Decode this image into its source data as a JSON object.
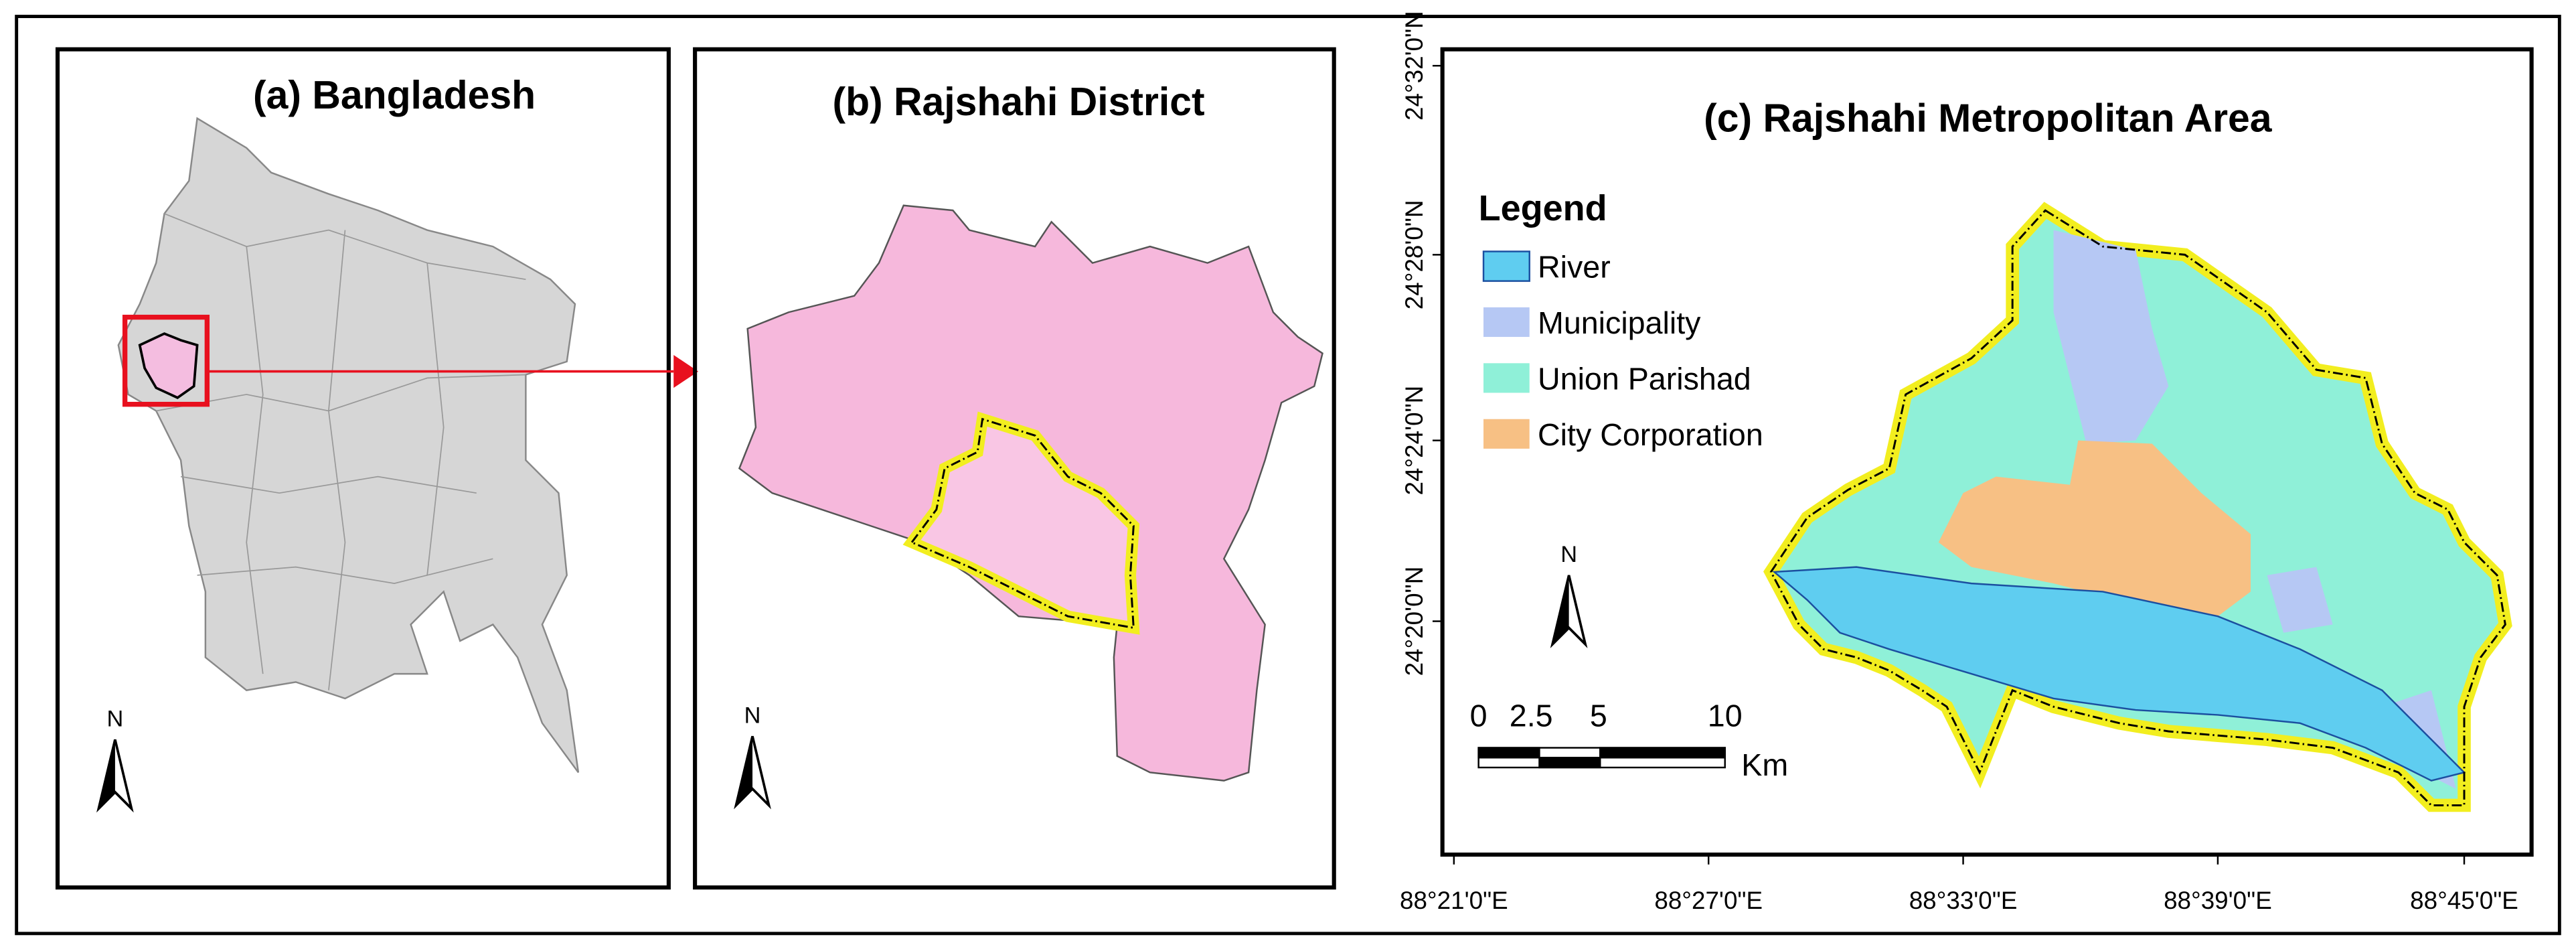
{
  "panels": [
    {
      "title": "(a) Bangladesh",
      "north": "N"
    },
    {
      "title": "(b) Rajshahi District",
      "north": "N"
    },
    {
      "title": "(c) Rajshahi Metropolitan Area",
      "north": "N"
    }
  ],
  "legend": {
    "title": "Legend",
    "items": [
      "River",
      "Municipality",
      "Union Parishad",
      "City Corporation"
    ]
  },
  "scale_bar": {
    "labels": [
      "0",
      "2.5",
      "5",
      "10"
    ],
    "unit": "Km"
  },
  "latitude_labels": [
    "24°32'0\"N",
    "24°28'0\"N",
    "24°24'0\"N",
    "24°20'0\"N"
  ],
  "longitude_labels": [
    "88°21'0\"E",
    "88°27'0\"E",
    "88°33'0\"E",
    "88°39'0\"E",
    "88°45'0\"E"
  ]
}
